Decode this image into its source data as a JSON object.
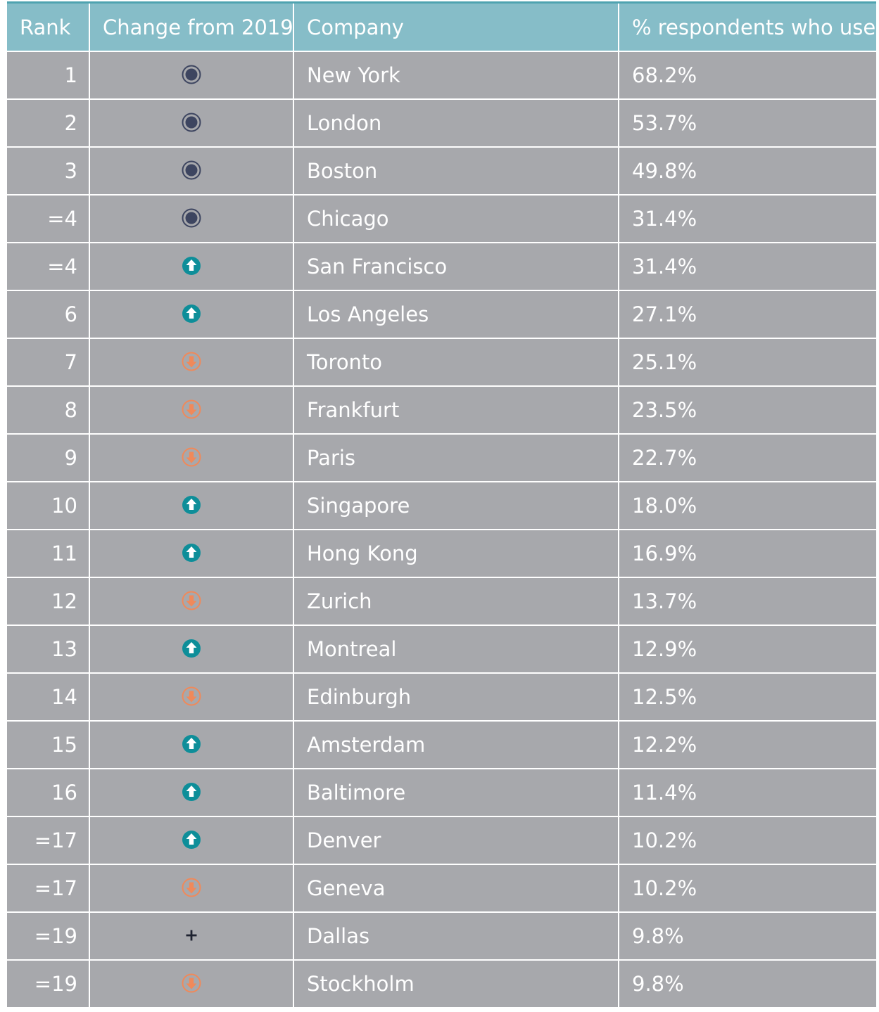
{
  "colors": {
    "header_bg": "#86bdc8",
    "header_top_rule": "#4fa3b0",
    "row_bg": "#a7a8ac",
    "text": "#ffffff",
    "same_icon": "#3d4560",
    "up_icon": "#0e8e99",
    "down_icon": "#f0895a",
    "new_icon": "#1e2230"
  },
  "icon_legend": {
    "same": "no-change-icon",
    "up": "arrow-up-circle-icon",
    "down": "arrow-down-circle-icon",
    "new": "plus-icon"
  },
  "chart_data": {
    "type": "table",
    "columns": [
      "Rank",
      "Change from 2019",
      "Company",
      "% respondents who use"
    ],
    "rows": [
      {
        "rank": "1",
        "change": "same",
        "company": "New York",
        "pct": "68.2%"
      },
      {
        "rank": "2",
        "change": "same",
        "company": "London",
        "pct": "53.7%"
      },
      {
        "rank": "3",
        "change": "same",
        "company": "Boston",
        "pct": "49.8%"
      },
      {
        "rank": "=4",
        "change": "same",
        "company": "Chicago",
        "pct": "31.4%"
      },
      {
        "rank": "=4",
        "change": "up",
        "company": "San Francisco",
        "pct": "31.4%"
      },
      {
        "rank": "6",
        "change": "up",
        "company": "Los Angeles",
        "pct": "27.1%"
      },
      {
        "rank": "7",
        "change": "down",
        "company": "Toronto",
        "pct": "25.1%"
      },
      {
        "rank": "8",
        "change": "down",
        "company": "Frankfurt",
        "pct": "23.5%"
      },
      {
        "rank": "9",
        "change": "down",
        "company": "Paris",
        "pct": "22.7%"
      },
      {
        "rank": "10",
        "change": "up",
        "company": "Singapore",
        "pct": "18.0%"
      },
      {
        "rank": "11",
        "change": "up",
        "company": "Hong Kong",
        "pct": "16.9%"
      },
      {
        "rank": "12",
        "change": "down",
        "company": "Zurich",
        "pct": "13.7%"
      },
      {
        "rank": "13",
        "change": "up",
        "company": "Montreal",
        "pct": "12.9%"
      },
      {
        "rank": "14",
        "change": "down",
        "company": "Edinburgh",
        "pct": "12.5%"
      },
      {
        "rank": "15",
        "change": "up",
        "company": "Amsterdam",
        "pct": "12.2%"
      },
      {
        "rank": "16",
        "change": "up",
        "company": "Baltimore",
        "pct": "11.4%"
      },
      {
        "rank": "=17",
        "change": "up",
        "company": "Denver",
        "pct": "10.2%"
      },
      {
        "rank": "=17",
        "change": "down",
        "company": "Geneva",
        "pct": "10.2%"
      },
      {
        "rank": "=19",
        "change": "new",
        "company": "Dallas",
        "pct": "9.8%"
      },
      {
        "rank": "=19",
        "change": "down",
        "company": "Stockholm",
        "pct": "9.8%"
      }
    ]
  }
}
